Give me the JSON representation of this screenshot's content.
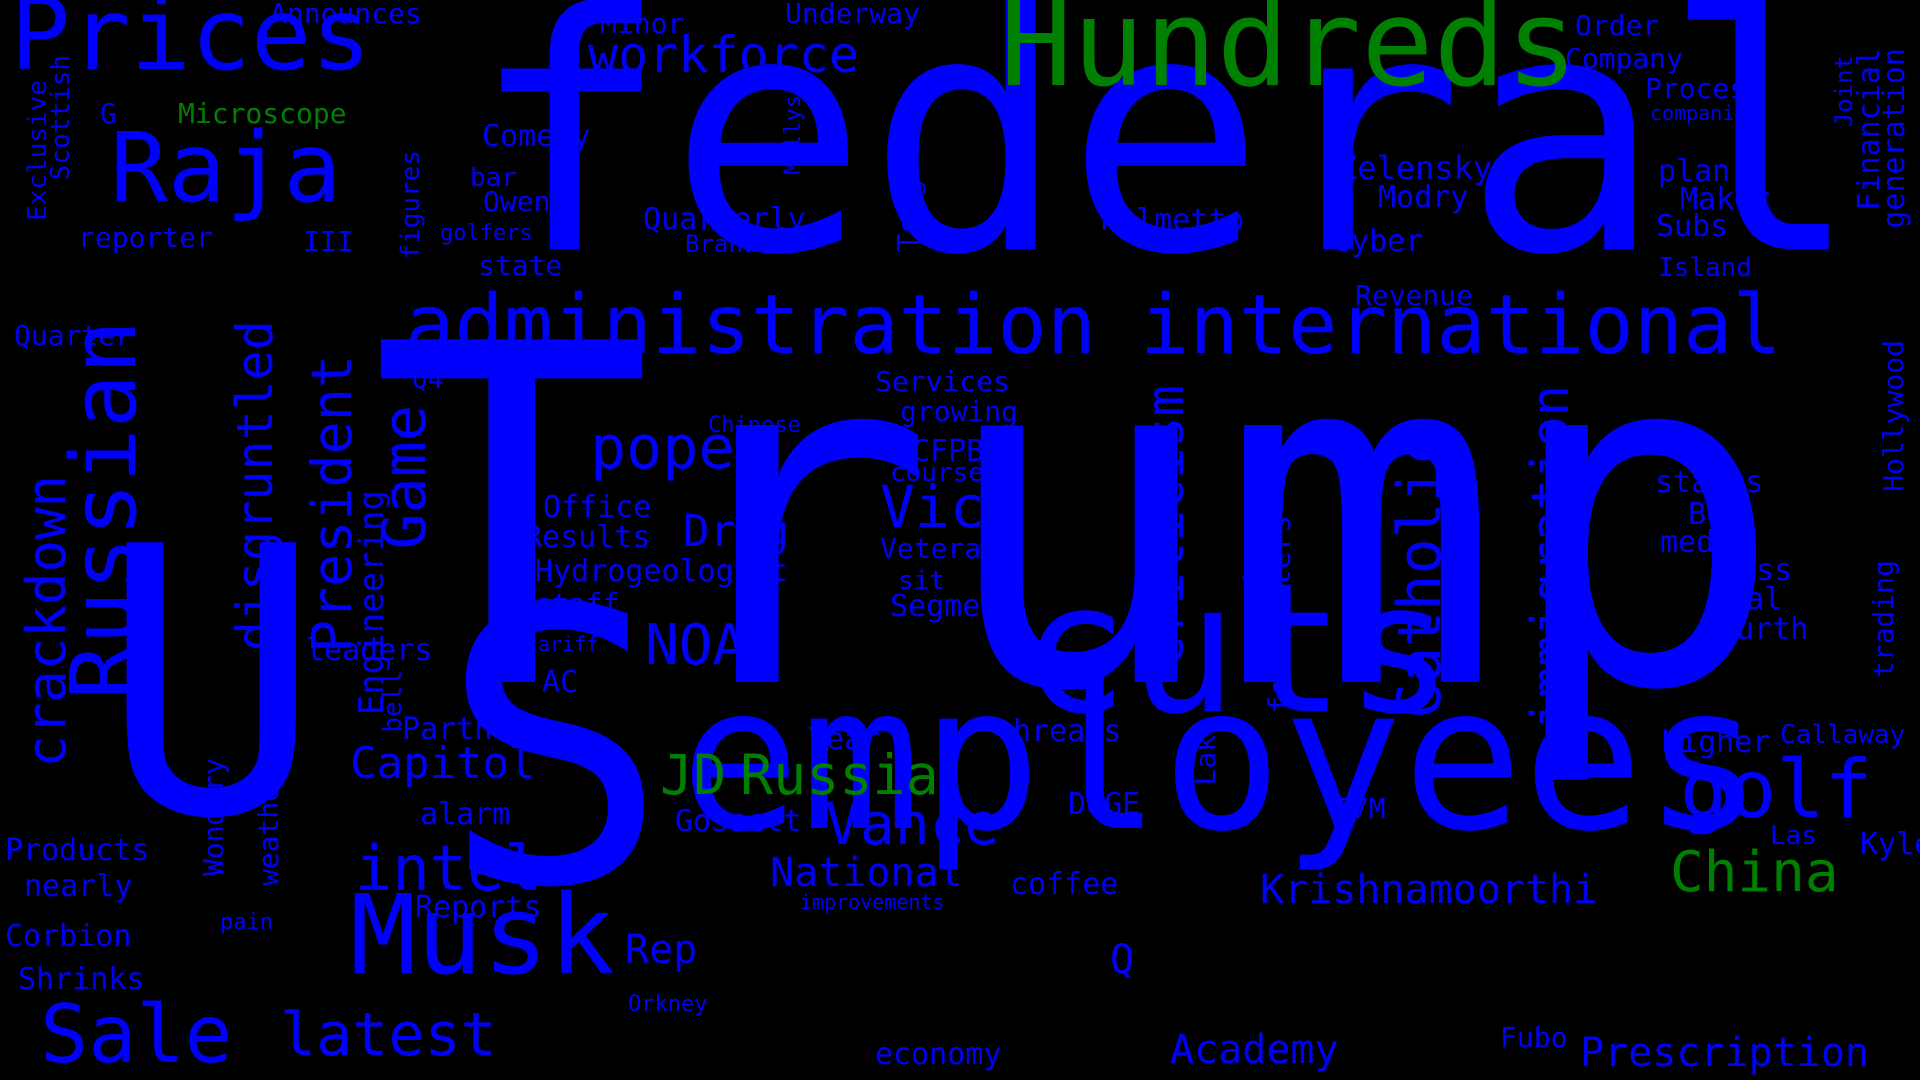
{
  "colors": {
    "background": "#000000",
    "blue": "#0000ff",
    "green": "#008000"
  },
  "words": [
    "Trump",
    "federal",
    "U",
    "S",
    "cuts",
    "employees",
    "Hundreds",
    "Prices",
    "Raja",
    "Russian",
    "administration",
    "international",
    "Musk",
    "Sale",
    "latest",
    "crackdown",
    "disgruntled",
    "President",
    "Game",
    "criticism",
    "Catholic",
    "immigration",
    "popes",
    "NOAA",
    "Vice",
    "Vance",
    "JD",
    "Russia",
    "China",
    "golf",
    "intel",
    "Krishnamoorthi",
    "National",
    "Academy",
    "Prescription",
    "workforce",
    "Capitol",
    "Drug",
    "Rep",
    "Engineering",
    "Q",
    "Microscope",
    "Announces",
    "Minor",
    "Underway",
    "Order",
    "Company",
    "Process",
    "companies",
    "G",
    "Comedy",
    "bar",
    "Owens",
    "Quarterly",
    "Brands",
    "figures",
    "golfers",
    "III",
    "reporter",
    "state",
    "Exclusive",
    "Scottish",
    "Quarter",
    "Q4",
    "Mollys",
    "Topgolf",
    "Dreambo",
    "Zelensky",
    "Modry",
    "cyber",
    "Palmetto",
    "plan",
    "Maker",
    "Subs",
    "Island",
    "Joint",
    "Financial",
    "generation",
    "Revenue",
    "Services",
    "growing",
    "Chinese",
    "CFPB",
    "course",
    "Office",
    "Results",
    "Hydrogeologist",
    "staff",
    "Veterans",
    "sit",
    "Segment",
    "status",
    "Bo",
    "media",
    "Loss",
    "Oval",
    "Fourth",
    "Hollywood",
    "trading",
    "leaders",
    "tariff",
    "AC",
    "bone",
    "forecasters",
    "bell",
    "Partners",
    "threats",
    "Year",
    "Lake",
    "Higher",
    "Callaway",
    "Products",
    "nearly",
    "Wondery",
    "weather",
    "alarm",
    "Gossett",
    "DOGE",
    "67M",
    "Las",
    "Kyle",
    "Corbion",
    "pain",
    "Reports",
    "improvements",
    "coffee",
    "Shrinks",
    "Orkney",
    "economy",
    "Fubo"
  ]
}
